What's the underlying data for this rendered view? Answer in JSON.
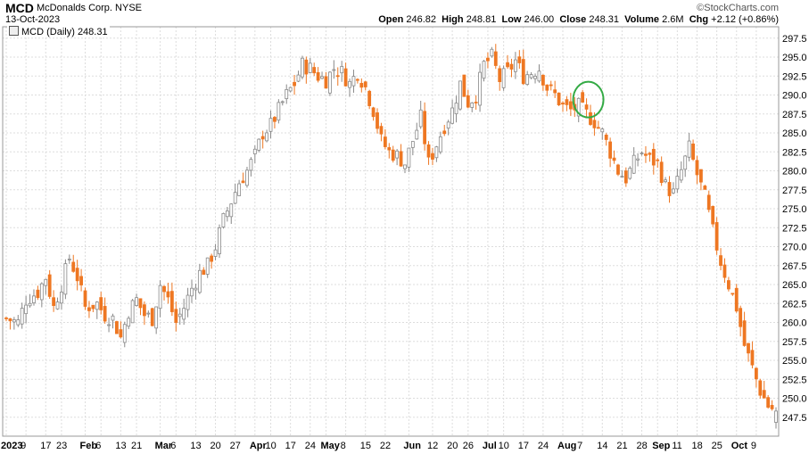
{
  "header": {
    "symbol": "MCD",
    "company": "McDonalds Corp.",
    "exchange": "NYSE",
    "date": "13-Oct-2023",
    "brand": "©StockCharts.com",
    "open_label": "Open",
    "open": "246.82",
    "high_label": "High",
    "high": "248.81",
    "low_label": "Low",
    "low": "246.00",
    "close_label": "Close",
    "close": "248.31",
    "volume_label": "Volume",
    "volume": "2.6M",
    "chg_label": "Chg",
    "chg": "+2.12 (+0.86%)"
  },
  "legend": {
    "text": "MCD (Daily) 248.31"
  },
  "colors": {
    "up": "#9a9a9a",
    "down": "#ee7722",
    "circle": "#33aa44",
    "grid": "#dddddd"
  },
  "chart_data": {
    "type": "candlestick",
    "title": "",
    "ylabel": "",
    "ylim": [
      245.0,
      299.0
    ],
    "y_ticks": [
      "247.5",
      "250.0",
      "252.5",
      "255.0",
      "257.5",
      "260.0",
      "262.5",
      "265.0",
      "267.5",
      "270.0",
      "272.5",
      "275.0",
      "277.5",
      "280.0",
      "282.5",
      "285.0",
      "287.5",
      "290.0",
      "292.5",
      "295.0",
      "297.5"
    ],
    "x_labels": [
      {
        "label": "2023",
        "index": 0,
        "bold": true
      },
      {
        "label": "9",
        "index": 5
      },
      {
        "label": "17",
        "index": 10
      },
      {
        "label": "23",
        "index": 14
      },
      {
        "label": "Feb",
        "index": 20,
        "bold": true
      },
      {
        "label": "6",
        "index": 24
      },
      {
        "label": "13",
        "index": 29
      },
      {
        "label": "21",
        "index": 33
      },
      {
        "label": "Mar",
        "index": 39,
        "bold": true
      },
      {
        "label": "6",
        "index": 43
      },
      {
        "label": "13",
        "index": 48
      },
      {
        "label": "20",
        "index": 53
      },
      {
        "label": "27",
        "index": 58
      },
      {
        "label": "Apr",
        "index": 63,
        "bold": true
      },
      {
        "label": "10",
        "index": 67
      },
      {
        "label": "17",
        "index": 72
      },
      {
        "label": "24",
        "index": 77
      },
      {
        "label": "May",
        "index": 81,
        "bold": true
      },
      {
        "label": "8",
        "index": 86
      },
      {
        "label": "15",
        "index": 91
      },
      {
        "label": "22",
        "index": 96
      },
      {
        "label": "Jun",
        "index": 102,
        "bold": true
      },
      {
        "label": "12",
        "index": 108
      },
      {
        "label": "20",
        "index": 113
      },
      {
        "label": "26",
        "index": 117
      },
      {
        "label": "Jul",
        "index": 122,
        "bold": true
      },
      {
        "label": "10",
        "index": 126
      },
      {
        "label": "17",
        "index": 131
      },
      {
        "label": "24",
        "index": 136
      },
      {
        "label": "Aug",
        "index": 141,
        "bold": true
      },
      {
        "label": "7",
        "index": 146
      },
      {
        "label": "14",
        "index": 151
      },
      {
        "label": "21",
        "index": 156
      },
      {
        "label": "28",
        "index": 161
      },
      {
        "label": "Sep",
        "index": 165,
        "bold": true
      },
      {
        "label": "11",
        "index": 170
      },
      {
        "label": "18",
        "index": 175
      },
      {
        "label": "25",
        "index": 180
      },
      {
        "label": "Oct",
        "index": 185,
        "bold": true
      },
      {
        "label": "9",
        "index": 190
      }
    ],
    "anchors": [
      [
        0,
        260.5
      ],
      [
        3,
        260.0
      ],
      [
        5,
        263.0
      ],
      [
        8,
        264.0
      ],
      [
        10,
        266.0
      ],
      [
        12,
        262.0
      ],
      [
        14,
        265.0
      ],
      [
        16,
        268.5
      ],
      [
        18,
        266.0
      ],
      [
        20,
        262.0
      ],
      [
        23,
        262.5
      ],
      [
        25,
        261.0
      ],
      [
        27,
        260.5
      ],
      [
        29,
        258.0
      ],
      [
        31,
        261.5
      ],
      [
        33,
        263.0
      ],
      [
        35,
        261.0
      ],
      [
        37,
        260.5
      ],
      [
        39,
        265.0
      ],
      [
        41,
        263.0
      ],
      [
        43,
        260.0
      ],
      [
        45,
        262.0
      ],
      [
        47,
        264.5
      ],
      [
        49,
        266.5
      ],
      [
        51,
        267.5
      ],
      [
        53,
        270.0
      ],
      [
        55,
        273.5
      ],
      [
        57,
        276.0
      ],
      [
        59,
        278.5
      ],
      [
        61,
        280.0
      ],
      [
        63,
        282.0
      ],
      [
        65,
        285.0
      ],
      [
        67,
        286.0
      ],
      [
        69,
        288.0
      ],
      [
        71,
        290.0
      ],
      [
        73,
        291.5
      ],
      [
        75,
        294.0
      ],
      [
        77,
        293.5
      ],
      [
        79,
        292.5
      ],
      [
        81,
        292.0
      ],
      [
        83,
        293.5
      ],
      [
        85,
        293.0
      ],
      [
        87,
        291.5
      ],
      [
        89,
        293.0
      ],
      [
        91,
        291.0
      ],
      [
        93,
        288.0
      ],
      [
        95,
        284.0
      ],
      [
        97,
        282.5
      ],
      [
        99,
        282.0
      ],
      [
        101,
        281.0
      ],
      [
        103,
        284.0
      ],
      [
        105,
        287.0
      ],
      [
        107,
        281.0
      ],
      [
        109,
        283.5
      ],
      [
        111,
        286.0
      ],
      [
        113,
        288.0
      ],
      [
        115,
        291.5
      ],
      [
        117,
        289.0
      ],
      [
        119,
        290.0
      ],
      [
        121,
        294.0
      ],
      [
        123,
        295.0
      ],
      [
        125,
        292.0
      ],
      [
        127,
        293.0
      ],
      [
        129,
        294.5
      ],
      [
        131,
        292.5
      ],
      [
        133,
        293.0
      ],
      [
        135,
        293.5
      ],
      [
        137,
        291.0
      ],
      [
        139,
        290.0
      ],
      [
        141,
        288.5
      ],
      [
        143,
        288.0
      ],
      [
        145,
        288.5
      ],
      [
        147,
        287.5
      ],
      [
        149,
        286.5
      ],
      [
        151,
        285.0
      ],
      [
        153,
        282.5
      ],
      [
        155,
        280.0
      ],
      [
        157,
        279.0
      ],
      [
        159,
        281.0
      ],
      [
        161,
        282.5
      ],
      [
        163,
        281.5
      ],
      [
        165,
        281.0
      ],
      [
        167,
        278.0
      ],
      [
        169,
        277.0
      ],
      [
        171,
        280.0
      ],
      [
        173,
        283.0
      ],
      [
        175,
        279.5
      ],
      [
        177,
        276.5
      ],
      [
        179,
        272.0
      ],
      [
        181,
        268.0
      ],
      [
        183,
        265.0
      ],
      [
        185,
        262.0
      ],
      [
        187,
        257.0
      ],
      [
        189,
        254.0
      ],
      [
        191,
        251.0
      ],
      [
        193,
        249.0
      ],
      [
        195,
        248.31
      ]
    ],
    "last": {
      "open": 246.82,
      "high": 248.81,
      "low": 246.0,
      "close": 248.31
    },
    "annotation": {
      "type": "circle",
      "index": 147,
      "price": 290.1
    }
  }
}
